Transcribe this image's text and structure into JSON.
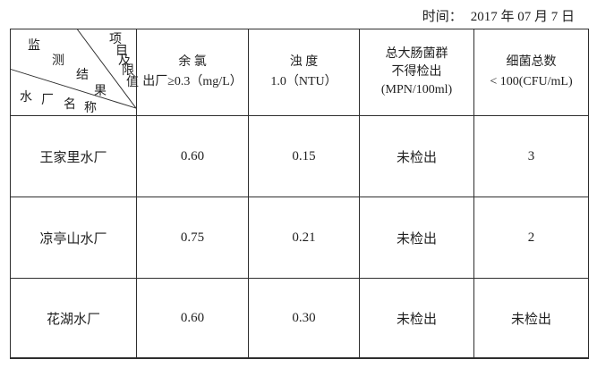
{
  "theme": {
    "background": "#ffffff",
    "text_color": "#1f1f1f",
    "line_color": "#2e2e2e"
  },
  "header": {
    "time_label": "时间：",
    "time_value": "2017 年 07 月 7 日"
  },
  "table": {
    "corner": {
      "project_axis": "项目及限值",
      "result_axis": "监测结果",
      "plant_axis": "水厂名称"
    },
    "columns": [
      {
        "lines": [
          "余 氯",
          "出厂≥0.3（mg/L）"
        ]
      },
      {
        "lines": [
          "浊 度",
          "1.0（NTU）"
        ]
      },
      {
        "lines": [
          "总大肠菌群",
          "不得检出",
          "(MPN/100ml)"
        ]
      },
      {
        "lines": [
          "细菌总数",
          "< 100(CFU/mL)"
        ]
      }
    ],
    "rows": [
      {
        "name": "王家里水厂",
        "values": [
          "0.60",
          "0.15",
          "未检出",
          "3"
        ]
      },
      {
        "name": "凉亭山水厂",
        "values": [
          "0.75",
          "0.21",
          "未检出",
          "2"
        ]
      },
      {
        "name": "花湖水厂",
        "values": [
          "0.60",
          "0.30",
          "未检出",
          "未检出"
        ]
      }
    ]
  }
}
